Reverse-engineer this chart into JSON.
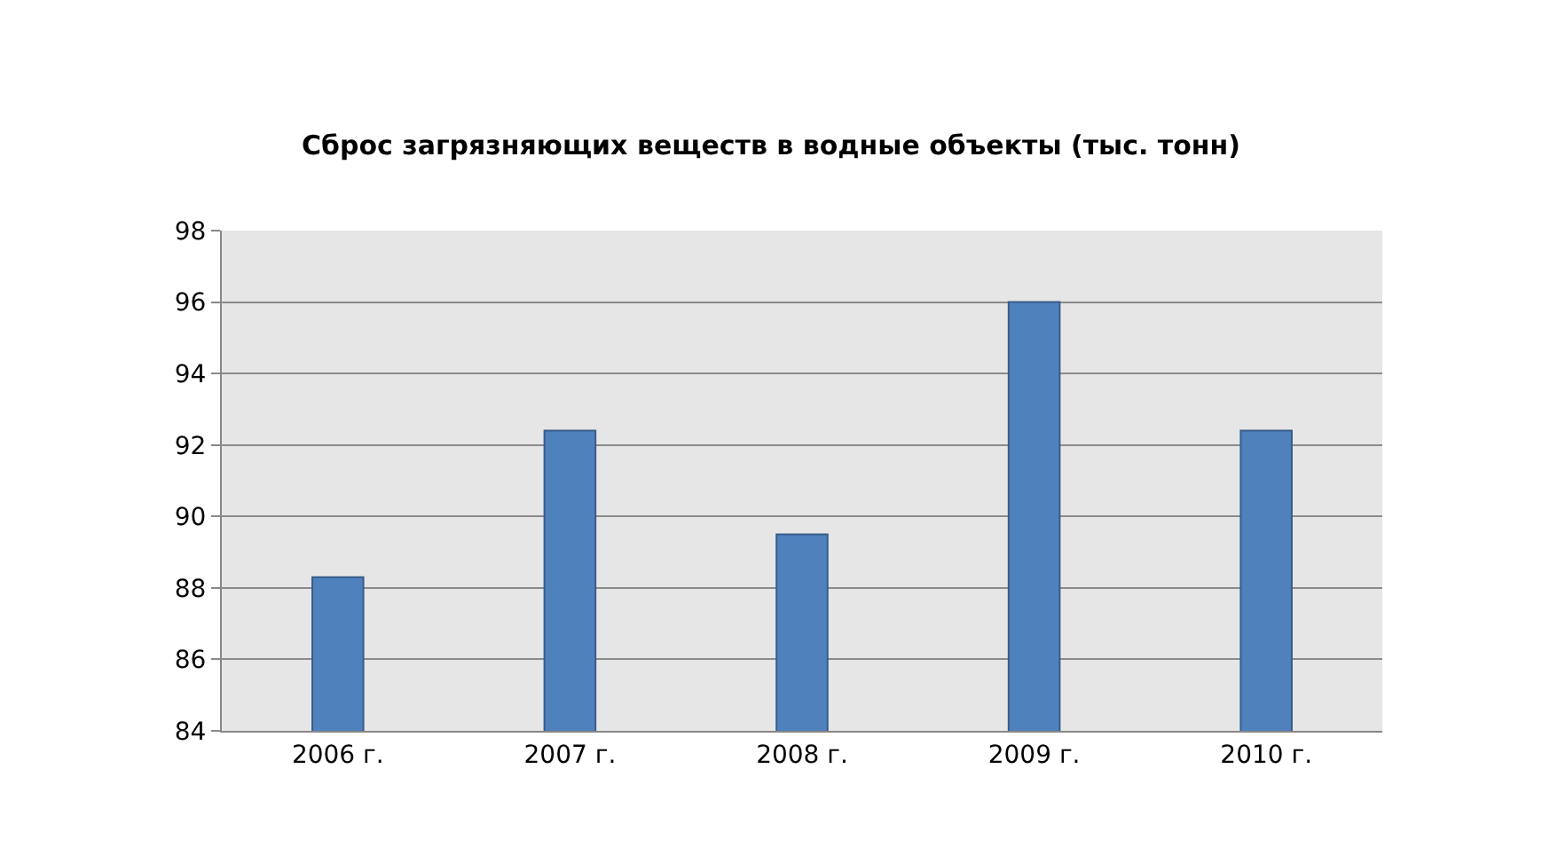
{
  "chart_data": {
    "type": "bar",
    "title": "Сброс загрязняющих веществ в водные объекты (тыс. тонн)",
    "categories": [
      "2006 г.",
      "2007 г.",
      "2008 г.",
      "2009 г.",
      "2010 г."
    ],
    "values": [
      88.3,
      92.4,
      89.5,
      96.0,
      92.4
    ],
    "color": "#4f81bd",
    "ylim": [
      84,
      98
    ],
    "yticks": [
      84,
      86,
      88,
      90,
      92,
      94,
      96,
      98
    ],
    "grid": "y",
    "legend": false
  }
}
